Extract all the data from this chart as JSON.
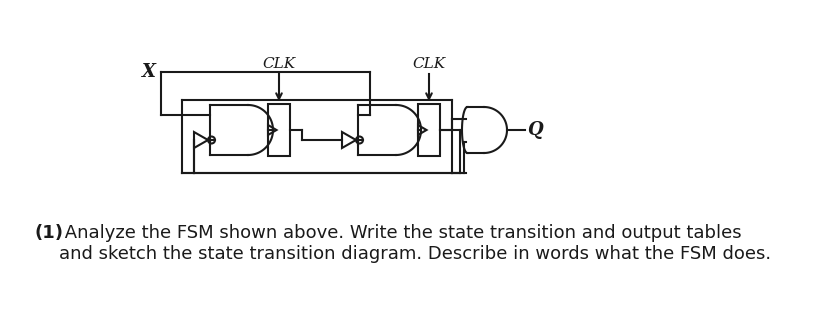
{
  "bg_color": "#ffffff",
  "line_color": "#1a1a1a",
  "text_color": "#1a1a1a",
  "X_label": "X",
  "CLK_label": "CLK",
  "Q_label": "Q",
  "bold_label": "(1)",
  "normal_label": " Analyze the FSM shown above. Write the state transition and output tables\nand sketch the state transition diagram. Describe in words what the FSM does.",
  "body_fontsize": 13.0
}
